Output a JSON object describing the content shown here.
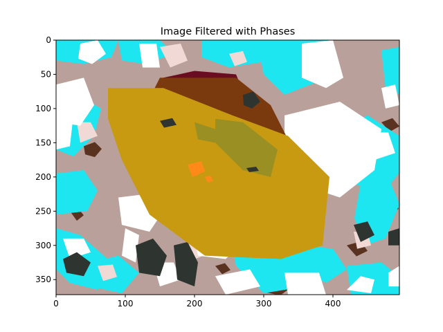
{
  "chart_data": {
    "type": "heatmap",
    "title": "Image Filtered with Phases",
    "xlabel": "",
    "ylabel": "",
    "xlim": [
      0,
      496
    ],
    "ylim": [
      372,
      0
    ],
    "y_axis_inverted": true,
    "grid": false,
    "legend": "none",
    "x_ticks": [
      0,
      100,
      200,
      300,
      400
    ],
    "y_ticks": [
      0,
      50,
      100,
      150,
      200,
      250,
      300,
      350
    ],
    "phase_colors": {
      "background_matrix": "#b9a09a",
      "dark_matrix": "#5a3320",
      "porosity_cyan": "#1ee6f0",
      "bright_grains": "#ffffff",
      "pale_pink_grains": "#f1d9d6",
      "dark_grains": "#2e3530",
      "gold_phase": "#c79a12",
      "olive_phase": "#9a8f22",
      "brown_phase": "#7a3a0e",
      "maroon_phase": "#6a0d22",
      "orange_phase": "#ff8a1a"
    }
  }
}
